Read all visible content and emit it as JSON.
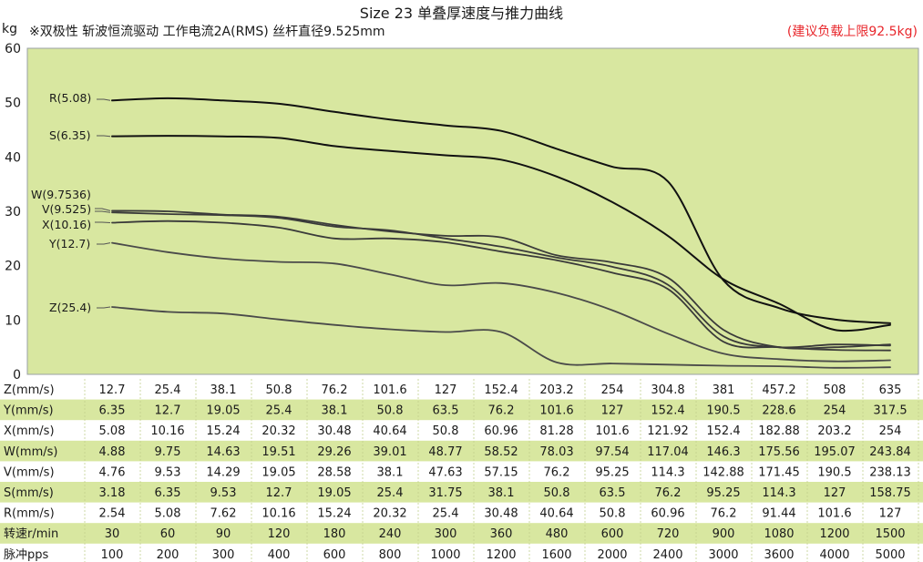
{
  "header": {
    "title": "Size 23 单叠厚速度与推力曲线",
    "y_unit": "kg",
    "subtitle": "※双极性 斩波恒流驱动 工作电流2A(RMS)  丝杆直径9.525mm",
    "note": "(建议负载上限92.5kg)"
  },
  "colors": {
    "plot_bg": "#d8e7a0",
    "row_stripe": "#d8e7a0",
    "curve_dark": "#111111",
    "curve_mid": "#3a3a3a",
    "curve_light": "#4a4a4a",
    "note_red": "#e8262b"
  },
  "chart_data": {
    "type": "line",
    "title": "Size 23 单叠厚速度与推力曲线",
    "ylabel": "kg",
    "ylim": [
      0,
      60
    ],
    "yticks": [
      0,
      10,
      20,
      30,
      40,
      50,
      60
    ],
    "x_points": 15,
    "x_categories_pps": [
      "100",
      "200",
      "300",
      "400",
      "600",
      "800",
      "1000",
      "1200",
      "1600",
      "2000",
      "2400",
      "3000",
      "3600",
      "4000",
      "5000"
    ],
    "grid": false,
    "series": [
      {
        "name": "R(5.08)",
        "values": [
          50.4,
          50.8,
          50.4,
          49.8,
          48.3,
          46.9,
          45.8,
          44.8,
          41.5,
          38.2,
          35.5,
          17.3,
          12.2,
          10.1,
          9.4
        ]
      },
      {
        "name": "S(6.35)",
        "values": [
          43.8,
          43.9,
          43.8,
          43.5,
          42.0,
          41.1,
          40.3,
          39.5,
          36.4,
          31.7,
          25.5,
          17.5,
          13.0,
          8.2,
          9.1
        ]
      },
      {
        "name": "W(9.7536)",
        "values": [
          30.1,
          30.0,
          29.4,
          29.0,
          27.5,
          26.3,
          25.5,
          25.2,
          21.9,
          20.6,
          17.8,
          8.2,
          5.0,
          5.0,
          5.5
        ]
      },
      {
        "name": "V(9.525)",
        "values": [
          29.8,
          29.5,
          29.3,
          28.8,
          27.2,
          26.5,
          25.0,
          23.5,
          21.5,
          19.8,
          16.5,
          7.0,
          5.0,
          5.5,
          5.3
        ]
      },
      {
        "name": "X(10.16)",
        "values": [
          27.9,
          28.2,
          27.9,
          27.0,
          25.0,
          25.0,
          24.3,
          22.6,
          21.0,
          18.7,
          15.7,
          6.0,
          5.0,
          4.5,
          4.4
        ]
      },
      {
        "name": "Y(12.7)",
        "values": [
          24.2,
          22.5,
          21.3,
          20.7,
          20.4,
          18.4,
          16.4,
          16.8,
          15.0,
          11.8,
          7.5,
          3.8,
          2.8,
          2.4,
          2.6
        ]
      },
      {
        "name": "Z(25.4)",
        "values": [
          12.4,
          11.5,
          11.2,
          10.1,
          9.1,
          8.3,
          7.8,
          7.8,
          2.2,
          2.0,
          1.8,
          1.6,
          1.5,
          1.2,
          1.3
        ]
      }
    ]
  },
  "table": {
    "rows": [
      {
        "label": "Z(mm/s)",
        "values": [
          "12.7",
          "25.4",
          "38.1",
          "50.8",
          "76.2",
          "101.6",
          "127",
          "152.4",
          "203.2",
          "254",
          "304.8",
          "381",
          "457.2",
          "508",
          "635"
        ]
      },
      {
        "label": "Y(mm/s)",
        "values": [
          "6.35",
          "12.7",
          "19.05",
          "25.4",
          "38.1",
          "50.8",
          "63.5",
          "76.2",
          "101.6",
          "127",
          "152.4",
          "190.5",
          "228.6",
          "254",
          "317.5"
        ]
      },
      {
        "label": "X(mm/s)",
        "values": [
          "5.08",
          "10.16",
          "15.24",
          "20.32",
          "30.48",
          "40.64",
          "50.8",
          "60.96",
          "81.28",
          "101.6",
          "121.92",
          "152.4",
          "182.88",
          "203.2",
          "254"
        ]
      },
      {
        "label": "W(mm/s)",
        "values": [
          "4.88",
          "9.75",
          "14.63",
          "19.51",
          "29.26",
          "39.01",
          "48.77",
          "58.52",
          "78.03",
          "97.54",
          "117.04",
          "146.3",
          "175.56",
          "195.07",
          "243.84"
        ]
      },
      {
        "label": "V(mm/s)",
        "values": [
          "4.76",
          "9.53",
          "14.29",
          "19.05",
          "28.58",
          "38.1",
          "47.63",
          "57.15",
          "76.2",
          "95.25",
          "114.3",
          "142.88",
          "171.45",
          "190.5",
          "238.13"
        ]
      },
      {
        "label": "S(mm/s)",
        "values": [
          "3.18",
          "6.35",
          "9.53",
          "12.7",
          "19.05",
          "25.4",
          "31.75",
          "38.1",
          "50.8",
          "63.5",
          "76.2",
          "95.25",
          "114.3",
          "127",
          "158.75"
        ]
      },
      {
        "label": "R(mm/s)",
        "values": [
          "2.54",
          "5.08",
          "7.62",
          "10.16",
          "15.24",
          "20.32",
          "25.4",
          "30.48",
          "40.64",
          "50.8",
          "60.96",
          "76.2",
          "91.44",
          "101.6",
          "127"
        ]
      },
      {
        "label": "转速r/min",
        "values": [
          "30",
          "60",
          "90",
          "120",
          "180",
          "240",
          "300",
          "360",
          "480",
          "600",
          "720",
          "900",
          "1080",
          "1200",
          "1500"
        ]
      },
      {
        "label": "脉冲pps",
        "values": [
          "100",
          "200",
          "300",
          "400",
          "600",
          "800",
          "1000",
          "1200",
          "1600",
          "2000",
          "2400",
          "3000",
          "3600",
          "4000",
          "5000"
        ]
      }
    ]
  }
}
